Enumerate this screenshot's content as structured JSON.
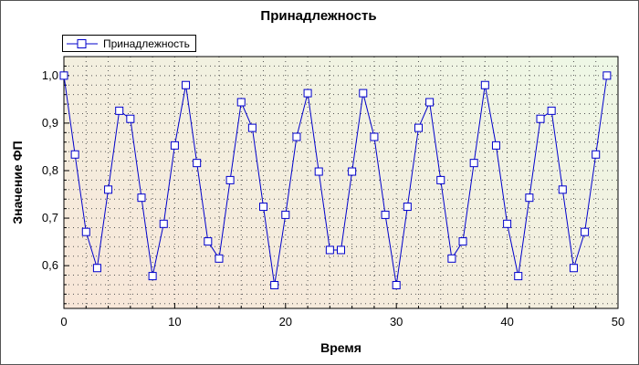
{
  "chart_data": {
    "type": "line",
    "title": "Принадлежность",
    "xlabel": "Время",
    "ylabel": "Значение ФП",
    "xlim": [
      0,
      50
    ],
    "ylim": [
      0.51,
      1.04
    ],
    "x_ticks": [
      {
        "value": 0,
        "label": "0"
      },
      {
        "value": 10,
        "label": "10"
      },
      {
        "value": 20,
        "label": "20"
      },
      {
        "value": 30,
        "label": "30"
      },
      {
        "value": 40,
        "label": "40"
      },
      {
        "value": 50,
        "label": "50"
      }
    ],
    "y_ticks": [
      {
        "value": 0.6,
        "label": "0,6"
      },
      {
        "value": 0.7,
        "label": "0,7"
      },
      {
        "value": 0.8,
        "label": "0,8"
      },
      {
        "value": 0.9,
        "label": "0,9"
      },
      {
        "value": 1.0,
        "label": "1,0"
      }
    ],
    "grid": true,
    "legend_position": "top-left",
    "series": [
      {
        "name": "Принадлежность",
        "color": "#0000cc",
        "marker": "square",
        "x": [
          0,
          1,
          2,
          3,
          4,
          5,
          6,
          7,
          8,
          9,
          10,
          11,
          12,
          13,
          14,
          15,
          16,
          17,
          18,
          19,
          20,
          21,
          22,
          23,
          24,
          25,
          26,
          27,
          28,
          29,
          30,
          31,
          32,
          33,
          34,
          35,
          36,
          37,
          38,
          39,
          40,
          41,
          42,
          43,
          44,
          45,
          46,
          47,
          48,
          49
        ],
        "y": [
          1.0,
          0.834,
          0.671,
          0.595,
          0.76,
          0.926,
          0.909,
          0.743,
          0.578,
          0.688,
          0.853,
          0.98,
          0.816,
          0.651,
          0.615,
          0.78,
          0.944,
          0.89,
          0.724,
          0.559,
          0.707,
          0.871,
          0.963,
          0.798,
          0.633,
          0.633,
          0.798,
          0.963,
          0.871,
          0.707,
          0.559,
          0.724,
          0.89,
          0.944,
          0.78,
          0.615,
          0.651,
          0.816,
          0.98,
          0.853,
          0.688,
          0.578,
          0.743,
          0.909,
          0.926,
          0.76,
          0.595,
          0.671,
          0.834,
          1.0
        ]
      }
    ]
  },
  "background": {
    "gradient_from": "#f8e6d8",
    "gradient_to": "#eef8e6"
  }
}
